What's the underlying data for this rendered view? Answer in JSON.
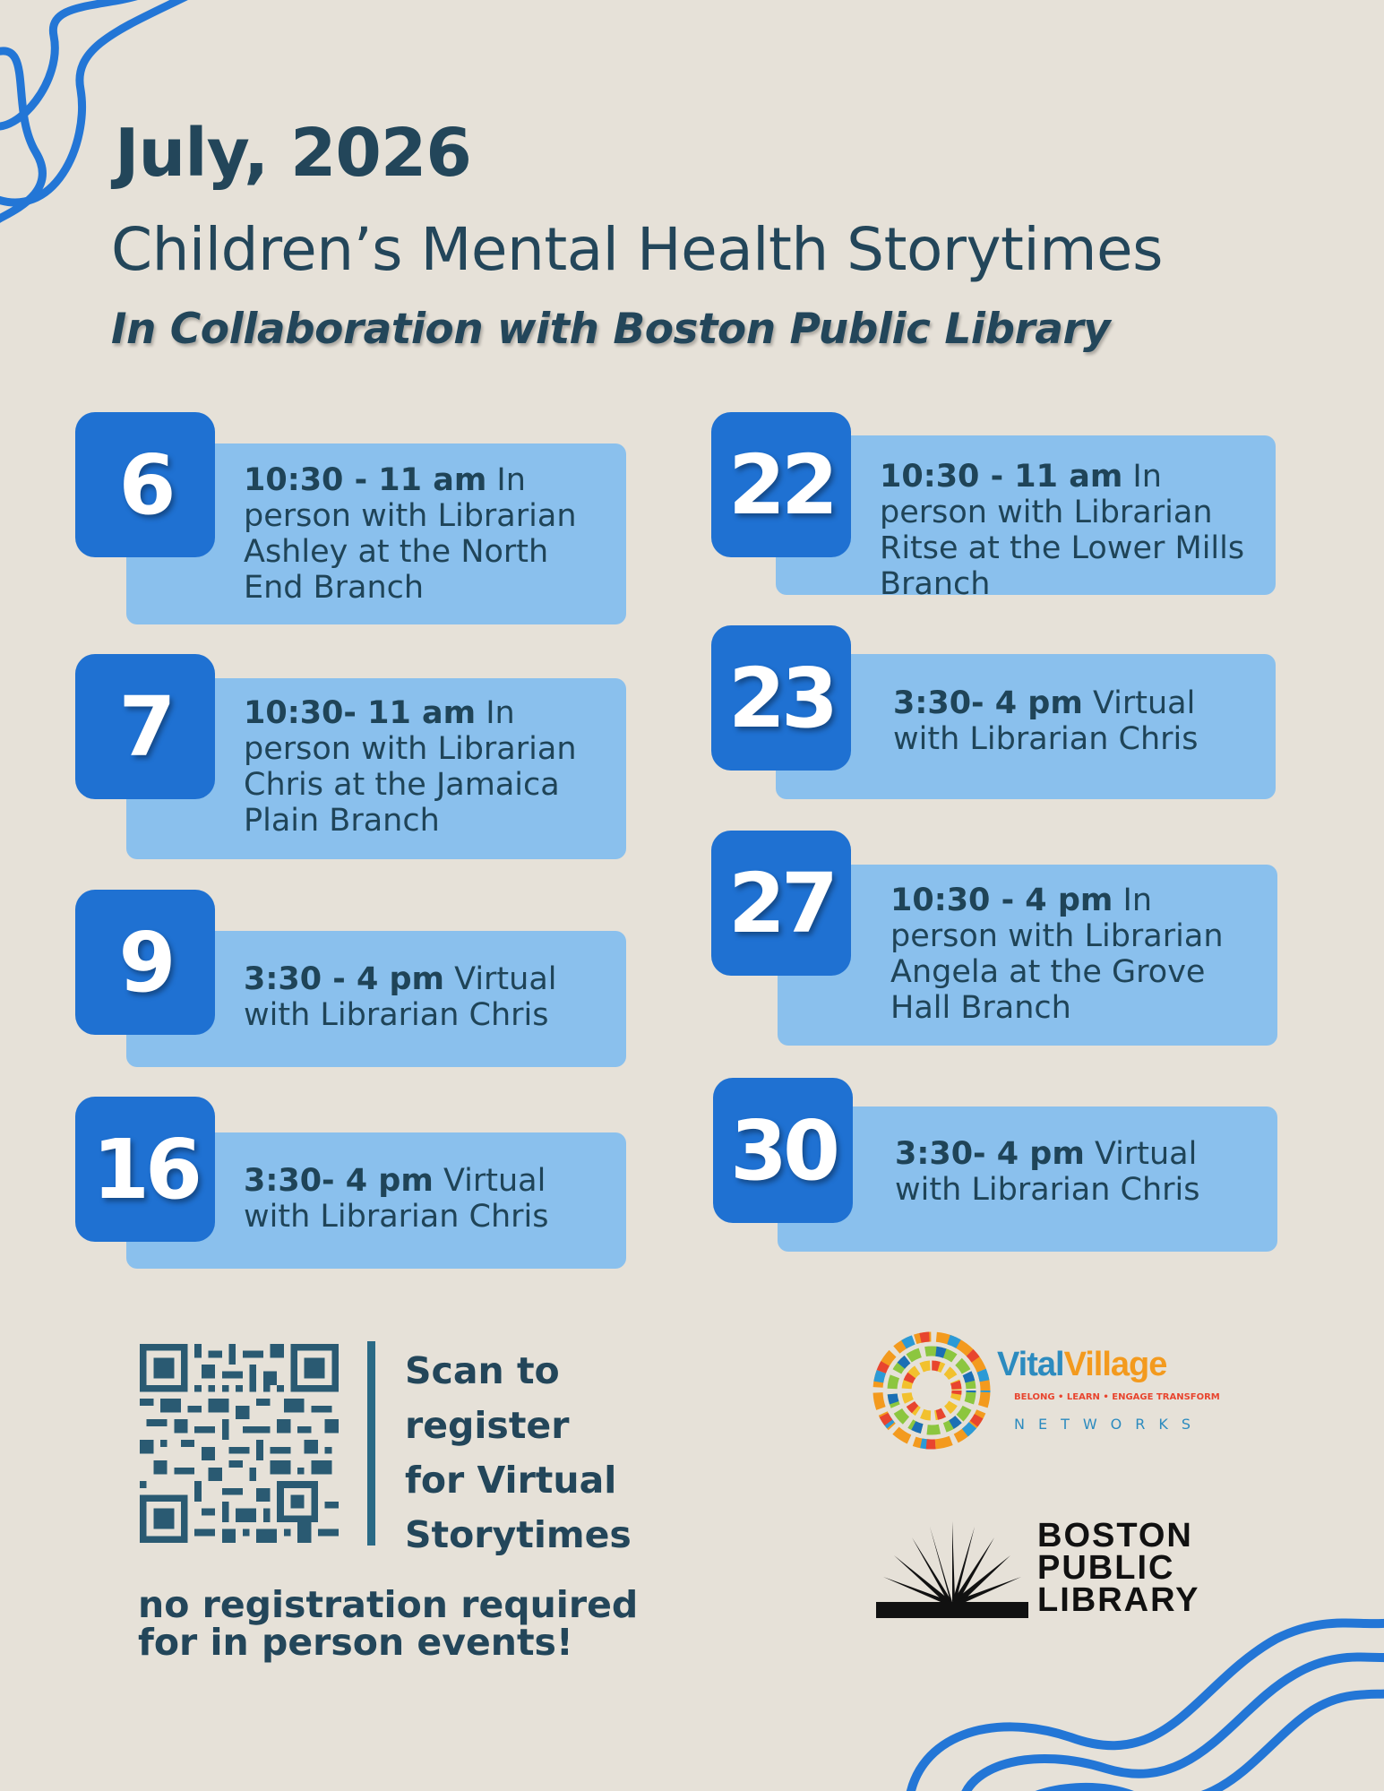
{
  "header": {
    "month": "July, 2026",
    "title": "Children’s Mental Health Storytimes",
    "subtitle": "In Collaboration with Boston Public Library"
  },
  "events": [
    {
      "day": "6",
      "time": "10:30 - 11 am",
      "desc": " In person with Librarian Ashley at the North End Branch"
    },
    {
      "day": "7",
      "time": "10:30- 11 am",
      "desc": " In person with Librarian Chris at the Jamaica Plain Branch"
    },
    {
      "day": "9",
      "time": "3:30 - 4 pm",
      "desc": " Virtual with Librarian Chris"
    },
    {
      "day": "16",
      "time": "3:30- 4 pm",
      "desc": " Virtual with Librarian Chris"
    },
    {
      "day": "22",
      "time": "10:30 - 11 am",
      "desc": " In person with Librarian Ritse at the Lower Mills Branch"
    },
    {
      "day": "23",
      "time": "3:30- 4 pm",
      "desc": " Virtual with Librarian Chris"
    },
    {
      "day": "27",
      "time": "10:30 - 4 pm",
      "desc": " In person with Librarian Angela at the Grove Hall Branch"
    },
    {
      "day": "30",
      "time": "3:30- 4 pm",
      "desc": " Virtual with Librarian Chris"
    }
  ],
  "registration": {
    "scan_text": "Scan to register for Virtual Storytimes",
    "no_registration": "no registration required for in person events!"
  },
  "logos": {
    "vital_village": {
      "name_1": "Vital",
      "name_2": "Village",
      "tagline": "BELONG • LEARN • ENGAGE   TRANSFORM",
      "sub": "NETWORKS"
    },
    "bpl": {
      "line1": "BOSTON",
      "line2": "PUBLIC",
      "line3": "LIBRARY"
    }
  },
  "colors": {
    "background": "#e6e1d8",
    "badge_blue": "#1f71d2",
    "box_blue": "#8ac0ed",
    "text_dark": "#23465a"
  }
}
